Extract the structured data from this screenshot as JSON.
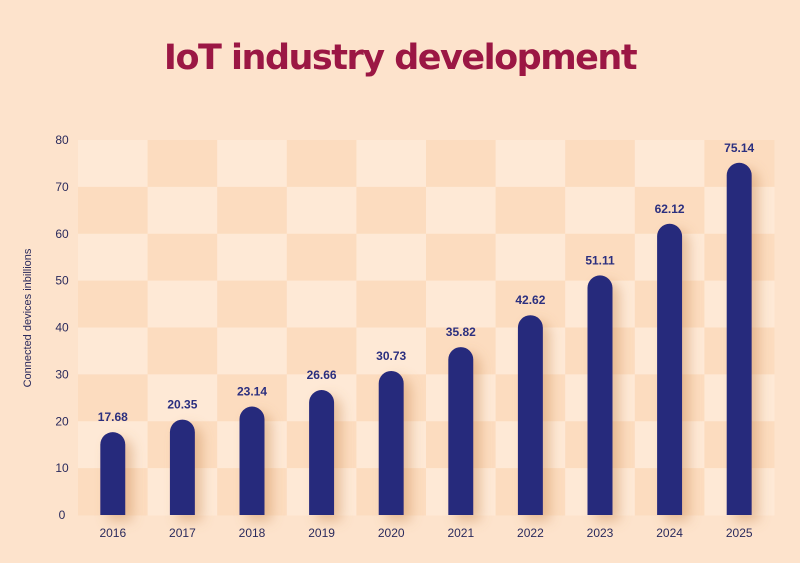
{
  "chart_data": {
    "type": "bar",
    "title": "IoT industry development",
    "xlabel": "",
    "ylabel": "Connected devices inbillions",
    "categories": [
      "2016",
      "2017",
      "2018",
      "2019",
      "2020",
      "2021",
      "2022",
      "2023",
      "2024",
      "2025"
    ],
    "values": [
      17.68,
      20.35,
      23.14,
      26.66,
      30.73,
      35.82,
      42.62,
      51.11,
      62.12,
      75.14
    ],
    "value_labels": [
      "17.68",
      "20.35",
      "23.14",
      "26.66",
      "30.73",
      "35.82",
      "42.62",
      "51.11",
      "62.12",
      "75.14"
    ],
    "ylim": [
      0,
      80
    ],
    "yticks": [
      "0",
      "10",
      "20",
      "30",
      "40",
      "50",
      "60",
      "70",
      "80"
    ],
    "grid": false,
    "legend": "none",
    "colors": {
      "background": "#fde3cc",
      "checker_light": "#fee9d6",
      "checker_dark": "#fcdcbf",
      "bar": "#252a7c",
      "title": "#9b1744"
    }
  }
}
